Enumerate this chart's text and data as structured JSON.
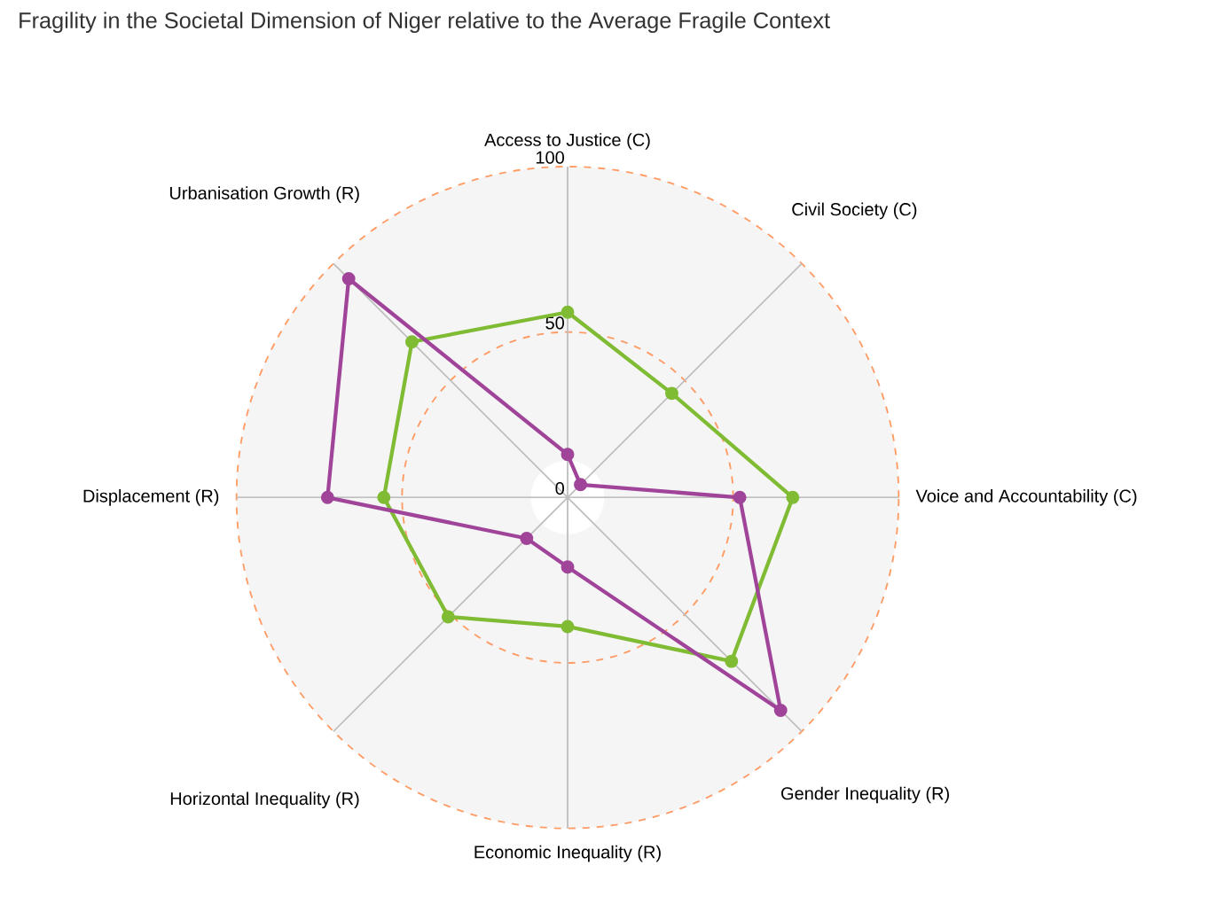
{
  "chart_data": {
    "type": "radar",
    "title": "Fragility in the Societal Dimension of Niger relative to the Average Fragile Context",
    "categories": [
      "Access to Justice (C)",
      "Civil Society (C)",
      "Voice and Accountability (C)",
      "Gender Inequality (R)",
      "Economic Inequality (R)",
      "Horizontal Inequality (R)",
      "Displacement (R)",
      "Urbanisation Growth (R)"
    ],
    "series": [
      {
        "color": "#80bb34",
        "values": [
          56,
          44.5,
          68,
          70,
          39,
          51,
          55.5,
          66.5
        ]
      },
      {
        "color": "#a0449a",
        "values": [
          13,
          5.5,
          52,
          91,
          21,
          17.5,
          72.5,
          93.5
        ]
      }
    ],
    "ylim": [
      0,
      100
    ],
    "yticks": [
      0,
      50,
      100
    ],
    "grid": true,
    "marker": "circle",
    "line_style": "solid"
  }
}
